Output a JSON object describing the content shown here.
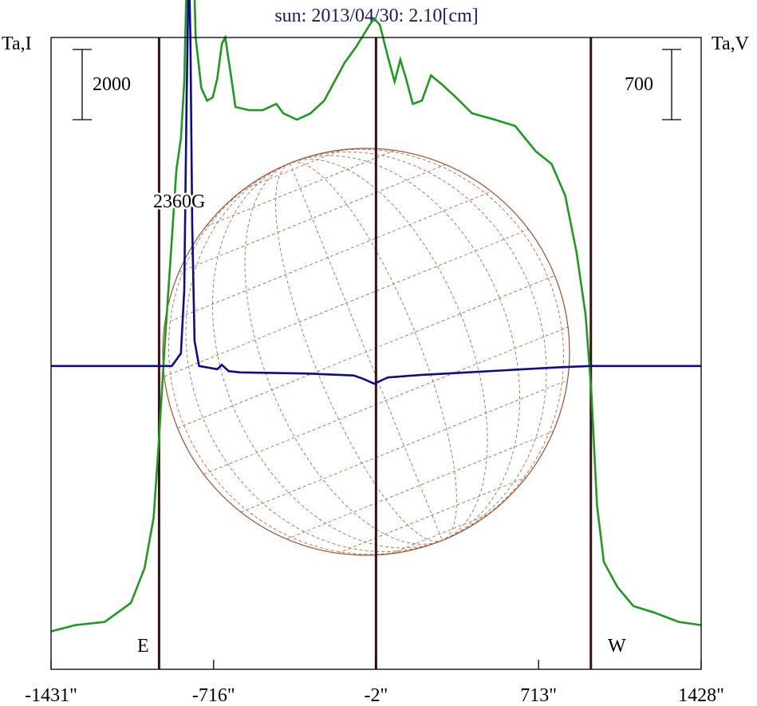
{
  "chart_data": {
    "type": "line",
    "title": "sun: 2013/04/30: 2.10[cm]",
    "ylabel_left": "Ta,I",
    "ylabel_right": "Ta,V",
    "scale_left": "2000",
    "scale_right": "700",
    "peak_label": "2360G",
    "limb_labels": {
      "east": "E",
      "west": "W"
    },
    "x_ticks": [
      {
        "value": -1431,
        "label": "-1431\""
      },
      {
        "value": -716,
        "label": "-716\""
      },
      {
        "value": -2,
        "label": "-2\""
      },
      {
        "value": 713,
        "label": "713\""
      },
      {
        "value": 1428,
        "label": "1428\""
      }
    ],
    "xlim": [
      -1431,
      1428
    ],
    "vertical_lines_x": [
      -956,
      -2,
      943
    ],
    "colors": {
      "intensity": "#1e9a1e",
      "polarization": "#0c0c8c",
      "disk": "#a0522d",
      "frame": "#000000",
      "vlines": "#3a1010",
      "title": "#1a1a66"
    },
    "series": [
      {
        "name": "Ta,I",
        "key": "intensity",
        "units": "screen-relative",
        "points": [
          [
            -1431,
            0.06
          ],
          [
            -1325,
            0.07
          ],
          [
            -1195,
            0.075
          ],
          [
            -1080,
            0.105
          ],
          [
            -1020,
            0.16
          ],
          [
            -980,
            0.24
          ],
          [
            -957,
            0.36
          ],
          [
            -930,
            0.52
          ],
          [
            -900,
            0.68
          ],
          [
            -880,
            0.79
          ],
          [
            -860,
            0.84
          ],
          [
            -845,
            0.93
          ],
          [
            -835,
            1.09
          ],
          [
            -827,
            1.4
          ],
          [
            -823,
            1.52
          ],
          [
            -818,
            1.4
          ],
          [
            -810,
            1.2
          ],
          [
            -795,
            1.0
          ],
          [
            -770,
            0.92
          ],
          [
            -745,
            0.9
          ],
          [
            -720,
            0.905
          ],
          [
            -700,
            0.935
          ],
          [
            -680,
            0.99
          ],
          [
            -665,
            1.0
          ],
          [
            -640,
            0.94
          ],
          [
            -620,
            0.89
          ],
          [
            -560,
            0.885
          ],
          [
            -500,
            0.885
          ],
          [
            -440,
            0.895
          ],
          [
            -410,
            0.88
          ],
          [
            -350,
            0.87
          ],
          [
            -290,
            0.88
          ],
          [
            -230,
            0.9
          ],
          [
            -140,
            0.96
          ],
          [
            -90,
            0.985
          ],
          [
            -30,
            1.02
          ],
          [
            -10,
            1.03
          ],
          [
            15,
            1.02
          ],
          [
            50,
            0.97
          ],
          [
            80,
            0.93
          ],
          [
            105,
            0.965
          ],
          [
            130,
            0.935
          ],
          [
            160,
            0.895
          ],
          [
            200,
            0.9
          ],
          [
            240,
            0.94
          ],
          [
            290,
            0.925
          ],
          [
            350,
            0.905
          ],
          [
            420,
            0.88
          ],
          [
            520,
            0.87
          ],
          [
            610,
            0.86
          ],
          [
            700,
            0.82
          ],
          [
            770,
            0.8
          ],
          [
            830,
            0.75
          ],
          [
            880,
            0.66
          ],
          [
            920,
            0.56
          ],
          [
            945,
            0.44
          ],
          [
            970,
            0.26
          ],
          [
            1000,
            0.17
          ],
          [
            1060,
            0.13
          ],
          [
            1130,
            0.1
          ],
          [
            1220,
            0.09
          ],
          [
            1330,
            0.075
          ],
          [
            1428,
            0.07
          ]
        ]
      },
      {
        "name": "Ta,V",
        "key": "polarization",
        "units": "screen-relative",
        "points": [
          [
            -1431,
            0.48
          ],
          [
            -1200,
            0.48
          ],
          [
            -1000,
            0.48
          ],
          [
            -900,
            0.48
          ],
          [
            -860,
            0.5
          ],
          [
            -845,
            0.6
          ],
          [
            -835,
            0.9
          ],
          [
            -825,
            1.12
          ],
          [
            -818,
            1.0
          ],
          [
            -810,
            0.7
          ],
          [
            -800,
            0.52
          ],
          [
            -780,
            0.48
          ],
          [
            -700,
            0.475
          ],
          [
            -680,
            0.482
          ],
          [
            -650,
            0.472
          ],
          [
            -600,
            0.47
          ],
          [
            -300,
            0.468
          ],
          [
            -100,
            0.465
          ],
          [
            -60,
            0.46
          ],
          [
            -10,
            0.452
          ],
          [
            50,
            0.462
          ],
          [
            200,
            0.466
          ],
          [
            400,
            0.47
          ],
          [
            600,
            0.474
          ],
          [
            800,
            0.478
          ],
          [
            940,
            0.48
          ],
          [
            1100,
            0.48
          ],
          [
            1428,
            0.48
          ]
        ]
      }
    ],
    "grid": false,
    "legend": "none"
  }
}
